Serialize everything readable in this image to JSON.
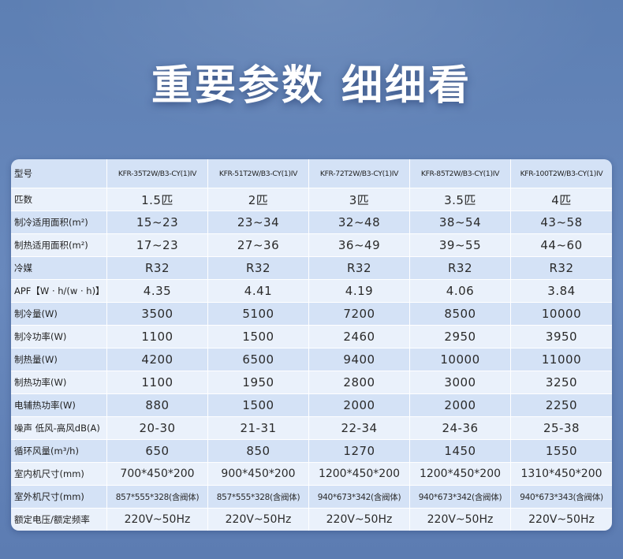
{
  "title": "重要参数 细细看",
  "table": {
    "header": {
      "label": "型号",
      "models": [
        "KFR-35T2W/B3-CY(1)IV",
        "KFR-51T2W/B3-CY(1)IV",
        "KFR-72T2W/B3-CY(1)IV",
        "KFR-85T2W/B3-CY(1)IV",
        "KFR-100T2W/B3-CY(1)IV"
      ]
    },
    "rows": [
      {
        "label": "匹数",
        "values": [
          "1.5匹",
          "2匹",
          "3匹",
          "3.5匹",
          "4匹"
        ]
      },
      {
        "label": "制冷适用面积(m²)",
        "values": [
          "15~23",
          "23~34",
          "32~48",
          "38~54",
          "43~58"
        ]
      },
      {
        "label": "制热适用面积(m²)",
        "values": [
          "17~23",
          "27~36",
          "36~49",
          "39~55",
          "44~60"
        ]
      },
      {
        "label": "冷媒",
        "values": [
          "R32",
          "R32",
          "R32",
          "R32",
          "R32"
        ]
      },
      {
        "label": "APF【W · h/(w · h)】",
        "values": [
          "4.35",
          "4.41",
          "4.19",
          "4.06",
          "3.84"
        ]
      },
      {
        "label": "制冷量(W)",
        "values": [
          "3500",
          "5100",
          "7200",
          "8500",
          "10000"
        ]
      },
      {
        "label": "制冷功率(W)",
        "values": [
          "1100",
          "1500",
          "2460",
          "2950",
          "3950"
        ]
      },
      {
        "label": "制热量(W)",
        "values": [
          "4200",
          "6500",
          "9400",
          "10000",
          "11000"
        ]
      },
      {
        "label": "制热功率(W)",
        "values": [
          "1100",
          "1950",
          "2800",
          "3000",
          "3250"
        ]
      },
      {
        "label": "电辅热功率(W)",
        "values": [
          "880",
          "1500",
          "2000",
          "2000",
          "2250"
        ]
      },
      {
        "label": "噪声 低风-高风dB(A)",
        "values": [
          "20-30",
          "21-31",
          "22-34",
          "24-36",
          "25-38"
        ]
      },
      {
        "label": "循环风量(m³/h)",
        "values": [
          "650",
          "850",
          "1270",
          "1450",
          "1550"
        ]
      },
      {
        "label": "室内机尺寸(mm)",
        "values": [
          "700*450*200",
          "900*450*200",
          "1200*450*200",
          "1200*450*200",
          "1310*450*200"
        ]
      },
      {
        "label": "室外机尺寸(mm)",
        "values": [
          "857*555*328(含阀体)",
          "857*555*328(含阀体)",
          "940*673*342(含阀体)",
          "940*673*342(含阀体)",
          "940*673*343(含阀体)"
        ]
      },
      {
        "label": "额定电压/额定频率",
        "values": [
          "220V~50Hz",
          "220V~50Hz",
          "220V~50Hz",
          "220V~50Hz",
          "220V~50Hz"
        ]
      }
    ]
  }
}
